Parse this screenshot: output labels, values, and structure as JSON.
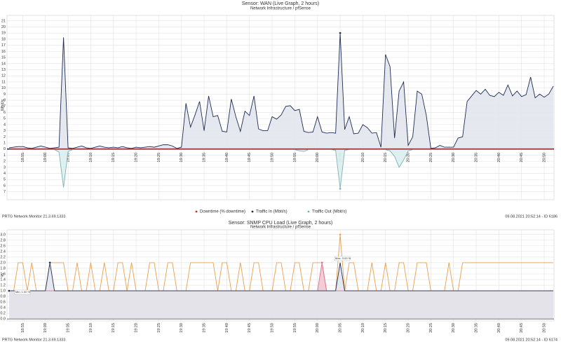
{
  "chart_data": [
    {
      "type": "line",
      "title": "Sensor: WAN (Live Graph, 2 hours)",
      "subtitle": "Network Infrastructure / pfSense",
      "y_label": "Mbit/s",
      "footer_left": "PRTG Network Monitor 21.3.69.1333",
      "footer_right": "09.08.2021 20:52:14 - ID 6186",
      "grid": true,
      "legend": "bottom",
      "x": [
        "18:52",
        "18:53",
        "18:54",
        "18:55",
        "18:56",
        "18:57",
        "18:58",
        "18:59",
        "19:00",
        "19:01",
        "19:02",
        "19:03",
        "19:04",
        "19:05",
        "19:06",
        "19:07",
        "19:08",
        "19:09",
        "19:10",
        "19:11",
        "19:12",
        "19:13",
        "19:14",
        "19:15",
        "19:16",
        "19:17",
        "19:18",
        "19:19",
        "19:20",
        "19:21",
        "19:22",
        "19:23",
        "19:24",
        "19:25",
        "19:26",
        "19:27",
        "19:28",
        "19:29",
        "19:30",
        "19:31",
        "19:32",
        "19:33",
        "19:34",
        "19:35",
        "19:36",
        "19:37",
        "19:38",
        "19:39",
        "19:40",
        "19:41",
        "19:42",
        "19:43",
        "19:44",
        "19:45",
        "19:46",
        "19:47",
        "19:48",
        "19:49",
        "19:50",
        "19:51",
        "19:52",
        "19:53",
        "19:54",
        "19:55",
        "19:56",
        "19:57",
        "19:58",
        "19:59",
        "20:00",
        "20:01",
        "20:02",
        "20:03",
        "20:04",
        "20:05",
        "20:06",
        "20:07",
        "20:08",
        "20:09",
        "20:10",
        "20:11",
        "20:12",
        "20:13",
        "20:14",
        "20:15",
        "20:16",
        "20:17",
        "20:18",
        "20:19",
        "20:20",
        "20:21",
        "20:22",
        "20:23",
        "20:24",
        "20:25",
        "20:26",
        "20:27",
        "20:28",
        "20:29",
        "20:30",
        "20:31",
        "20:32",
        "20:33",
        "20:34",
        "20:35",
        "20:36",
        "20:37",
        "20:38",
        "20:39",
        "20:40",
        "20:41",
        "20:42",
        "20:43",
        "20:44",
        "20:45",
        "20:46",
        "20:47",
        "20:48",
        "20:49",
        "20:50",
        "20:51",
        "20:52"
      ],
      "xlim": [
        "18:52",
        "20:52"
      ],
      "xticks": [
        "18:55",
        "19:00",
        "19:05",
        "19:10",
        "19:15",
        "19:20",
        "19:25",
        "19:30",
        "19:35",
        "19:40",
        "19:45",
        "19:50",
        "19:55",
        "20:00",
        "20:05",
        "20:10",
        "20:15",
        "20:20",
        "20:25",
        "20:30",
        "20:35",
        "20:40",
        "20:45",
        "20:50"
      ],
      "ylim": [
        -8.3,
        21.9
      ],
      "yticks": [
        21,
        20,
        19,
        18,
        17,
        16,
        15,
        14,
        13,
        12,
        11,
        10,
        9,
        8,
        7,
        6,
        5,
        4,
        3,
        2,
        1,
        0,
        {
          "value": -1,
          "label": "1"
        },
        {
          "value": -2,
          "label": "2"
        },
        {
          "value": -3,
          "label": "3"
        },
        {
          "value": -4,
          "label": "4"
        },
        {
          "value": -5,
          "label": "5"
        },
        {
          "value": -6,
          "label": "6"
        },
        {
          "value": -7,
          "label": "7"
        }
      ],
      "series": [
        {
          "name": "Downtime (% downtime)",
          "color": "#c0392b",
          "values": [
            0,
            0,
            0,
            0,
            0,
            0,
            0,
            0,
            0,
            0,
            0,
            0,
            0,
            0,
            0,
            0,
            0,
            0,
            0,
            0,
            0,
            0,
            0,
            0,
            0,
            0,
            0,
            0,
            0,
            0,
            0,
            0,
            0,
            0,
            0,
            0,
            0,
            0,
            0,
            0,
            0,
            0,
            0,
            0,
            0,
            0,
            0,
            0,
            0,
            0,
            0,
            0,
            0,
            0,
            0,
            0,
            0,
            0,
            0,
            0,
            0,
            0,
            0,
            0,
            0,
            0,
            0,
            0,
            0,
            0,
            0,
            0,
            0,
            0,
            0,
            0,
            0,
            0,
            0,
            0,
            0,
            0,
            0,
            0,
            0,
            0,
            0,
            0,
            0,
            0,
            0,
            0,
            0,
            0,
            0,
            0,
            0,
            0,
            0,
            0,
            0,
            0,
            0,
            0,
            0,
            0,
            0,
            0,
            0,
            0,
            0,
            0,
            0,
            0,
            0,
            0,
            0,
            0,
            0,
            0,
            0
          ]
        },
        {
          "name": "Traffic In (Mbit/s)",
          "color": "#1e2c55",
          "fill": "#e3e6ee",
          "max_marker": true,
          "values": [
            0.2,
            0.3,
            0.4,
            0.4,
            0.2,
            0.1,
            0.3,
            0.5,
            0.3,
            0.1,
            0.2,
            0.3,
            18.3,
            0.2,
            0.1,
            0.3,
            0.5,
            0.2,
            0.1,
            0.3,
            0.5,
            0.3,
            0.2,
            0.3,
            0.2,
            0.4,
            0.2,
            0.1,
            0.3,
            0.2,
            0.3,
            0.4,
            0.3,
            0.5,
            0.7,
            0.7,
            0.5,
            0.1,
            0.3,
            7.5,
            3.6,
            5.6,
            7.8,
            3.0,
            8.7,
            5.3,
            5.5,
            2.9,
            2.8,
            8.2,
            5.3,
            2.9,
            6.2,
            5.5,
            8.7,
            3.3,
            3.0,
            3.0,
            5.3,
            4.9,
            5.6,
            7.0,
            7.1,
            6.3,
            6.5,
            2.9,
            2.7,
            2.8,
            5.3,
            2.8,
            2.6,
            2.7,
            2.6,
            19.0,
            3.2,
            5.3,
            2.5,
            2.6,
            4.0,
            3.5,
            2.6,
            2.7,
            0.3,
            15.5,
            13.5,
            1.8,
            9.5,
            11.0,
            0.6,
            2.0,
            9.5,
            9.0,
            5.5,
            0.1,
            0.2,
            0.6,
            0.3,
            0.3,
            0.3,
            1.8,
            2.0,
            7.8,
            8.7,
            9.6,
            9.0,
            9.8,
            8.8,
            8.6,
            9.3,
            8.8,
            10.5,
            8.7,
            9.5,
            8.6,
            8.9,
            11.8,
            8.4,
            9.0,
            8.5,
            9.0,
            10.3
          ]
        },
        {
          "name": "Traffic Out (Mbit/s)",
          "color": "#7fb3b5",
          "fill": "#dceeee",
          "min_marker": true,
          "values": [
            -0.1,
            -0.1,
            -0.1,
            -0.1,
            -0.1,
            -0.1,
            -0.1,
            -0.1,
            -0.1,
            -0.1,
            -0.1,
            -0.5,
            -6.3,
            -0.4,
            -0.1,
            -0.1,
            -0.1,
            -0.1,
            -0.1,
            -0.1,
            -0.1,
            -0.1,
            -0.1,
            -0.1,
            -0.1,
            -0.1,
            -0.1,
            -0.1,
            -0.1,
            -0.1,
            -0.1,
            -0.1,
            -0.1,
            -0.1,
            -0.1,
            -0.1,
            -0.1,
            -0.1,
            -0.1,
            -0.1,
            -0.1,
            -0.1,
            -0.1,
            -0.1,
            -0.1,
            -0.1,
            -0.1,
            -0.1,
            -0.1,
            -0.1,
            -0.1,
            -0.1,
            -0.1,
            -0.1,
            -0.1,
            -0.1,
            -0.1,
            -0.1,
            -0.1,
            -0.1,
            -0.1,
            -0.1,
            -0.1,
            -0.1,
            -0.3,
            -0.4,
            -0.1,
            -0.1,
            -0.1,
            -0.1,
            -0.1,
            -0.1,
            -0.2,
            -6.5,
            -0.2,
            -0.1,
            -0.1,
            -0.1,
            -0.1,
            -0.1,
            -0.1,
            -0.1,
            -0.1,
            -0.1,
            -0.3,
            -1.2,
            -3.0,
            -1.8,
            -0.3,
            -0.1,
            -0.1,
            -0.1,
            -0.1,
            -0.1,
            -0.1,
            -0.1,
            -0.1,
            -0.1,
            -0.1,
            -0.1,
            -0.1,
            -0.1,
            -0.1,
            -0.1,
            -0.1,
            -0.1,
            -0.1,
            -0.1,
            -0.1,
            -0.1,
            -0.1,
            -0.1,
            -0.1,
            -0.1,
            -0.1,
            -0.1,
            -0.1,
            -0.1,
            -0.1,
            -0.1,
            -0.1
          ]
        }
      ]
    },
    {
      "type": "line",
      "title": "Sensor: SNMP CPU Load (Live Graph, 2 hours)",
      "subtitle": "Network Infrastructure / pfSense",
      "y_label": "%",
      "footer_left": "PRTG Network Monitor 21.3.69.1333",
      "footer_right": "09.08.2021 20:52:14 - ID 6174",
      "annotations": [
        "Max: 3.00 %",
        "Min: 1.00 %"
      ],
      "grid": true,
      "x": [
        "18:52",
        "18:53",
        "18:54",
        "18:55",
        "18:56",
        "18:57",
        "18:58",
        "18:59",
        "19:00",
        "19:01",
        "19:02",
        "19:03",
        "19:04",
        "19:05",
        "19:06",
        "19:07",
        "19:08",
        "19:09",
        "19:10",
        "19:11",
        "19:12",
        "19:13",
        "19:14",
        "19:15",
        "19:16",
        "19:17",
        "19:18",
        "19:19",
        "19:20",
        "19:21",
        "19:22",
        "19:23",
        "19:24",
        "19:25",
        "19:26",
        "19:27",
        "19:28",
        "19:29",
        "19:30",
        "19:31",
        "19:32",
        "19:33",
        "19:34",
        "19:35",
        "19:36",
        "19:37",
        "19:38",
        "19:39",
        "19:40",
        "19:41",
        "19:42",
        "19:43",
        "19:44",
        "19:45",
        "19:46",
        "19:47",
        "19:48",
        "19:49",
        "19:50",
        "19:51",
        "19:52",
        "19:53",
        "19:54",
        "19:55",
        "19:56",
        "19:57",
        "19:58",
        "19:59",
        "20:00",
        "20:01",
        "20:02",
        "20:03",
        "20:04",
        "20:05",
        "20:06",
        "20:07",
        "20:08",
        "20:09",
        "20:10",
        "20:11",
        "20:12",
        "20:13",
        "20:14",
        "20:15",
        "20:16",
        "20:17",
        "20:18",
        "20:19",
        "20:20",
        "20:21",
        "20:22",
        "20:23",
        "20:24",
        "20:25",
        "20:26",
        "20:27",
        "20:28",
        "20:29",
        "20:30",
        "20:31",
        "20:32",
        "20:33",
        "20:34",
        "20:35",
        "20:36",
        "20:37",
        "20:38",
        "20:39",
        "20:40",
        "20:41",
        "20:42",
        "20:43",
        "20:44",
        "20:45",
        "20:46",
        "20:47",
        "20:48",
        "20:49",
        "20:50",
        "20:51",
        "20:52"
      ],
      "xlim": [
        "18:52",
        "20:52"
      ],
      "xticks": [
        "18:55",
        "19:00",
        "19:05",
        "19:10",
        "19:15",
        "19:20",
        "19:25",
        "19:30",
        "19:35",
        "19:40",
        "19:45",
        "19:50",
        "19:55",
        "20:00",
        "20:05",
        "20:10",
        "20:15",
        "20:20",
        "20:25",
        "20:30",
        "20:35",
        "20:40",
        "20:45",
        "20:50"
      ],
      "ylim": [
        -0.07,
        3.17
      ],
      "yticks": [
        {
          "value": 3,
          "label": "3.0"
        },
        2.8,
        2.6,
        2.4,
        2.2,
        {
          "value": 2,
          "label": "2.0"
        },
        1.8,
        1.6,
        1.4,
        1.2,
        {
          "value": 1,
          "label": "1.0"
        },
        0.8,
        0.6,
        0.4,
        0.2,
        {
          "value": 0,
          "label": "0.0"
        }
      ],
      "series": [
        {
          "color": "#e8a04c",
          "max_marker": true,
          "values": [
            1,
            1,
            2,
            2,
            1,
            2,
            1,
            1,
            1,
            2,
            2,
            2,
            2,
            1,
            1,
            2,
            1,
            1,
            2,
            1,
            1,
            2,
            1,
            1,
            2,
            2,
            1,
            2,
            1,
            1,
            1,
            2,
            2,
            1,
            1,
            2,
            2,
            1,
            1,
            1,
            2,
            2,
            2,
            2,
            2,
            2,
            1,
            2,
            2,
            1,
            1,
            2,
            1,
            1,
            2,
            2,
            1,
            1,
            1,
            2,
            2,
            1,
            1,
            2,
            2,
            1,
            1,
            2,
            2,
            2,
            1,
            1,
            1,
            3,
            1,
            2,
            2,
            1,
            1,
            1,
            2,
            1,
            1,
            2,
            1,
            1,
            2,
            2,
            1,
            1,
            2,
            2,
            2,
            1,
            1,
            1,
            1,
            2,
            1,
            1,
            2,
            2,
            2,
            2,
            2,
            2,
            2,
            2,
            2,
            2,
            2,
            2,
            2,
            2,
            2,
            2,
            2,
            2,
            2,
            2,
            2
          ]
        },
        {
          "color": "#d9708f",
          "fill": "#f1c6d3",
          "max_marker": true,
          "values": [
            1,
            1,
            1,
            1,
            1,
            1,
            1,
            1,
            1,
            1,
            1,
            1,
            1,
            1,
            1,
            1,
            1,
            1,
            1,
            1,
            1,
            1,
            1,
            1,
            1,
            1,
            1,
            1,
            1,
            1,
            1,
            1,
            1,
            1,
            1,
            1,
            1,
            1,
            1,
            1,
            1,
            1,
            1,
            1,
            1,
            1,
            1,
            1,
            1,
            1,
            1,
            1,
            1,
            1,
            1,
            1,
            1,
            1,
            1,
            1,
            1,
            1,
            1,
            1,
            1,
            1,
            1,
            1,
            1,
            2,
            1,
            1,
            1,
            1,
            1,
            1,
            1,
            1,
            1,
            1,
            1,
            1,
            1,
            1,
            1,
            1,
            1,
            1,
            1,
            1,
            1,
            1,
            1,
            1,
            1,
            1,
            1,
            1,
            1,
            1,
            1,
            1,
            1,
            1,
            1,
            1,
            1,
            1,
            1,
            1,
            1,
            1,
            1,
            1,
            1,
            1,
            1,
            1,
            1,
            1,
            1
          ]
        },
        {
          "color": "#1e2c55",
          "fill": "#e2e5ec",
          "max_marker": true,
          "min_marker": true,
          "values": [
            1,
            1,
            1,
            1,
            1,
            1,
            1,
            1,
            1,
            2,
            1,
            1,
            1,
            1,
            1,
            1,
            1,
            1,
            1,
            1,
            1,
            1,
            1,
            1,
            1,
            1,
            1,
            1,
            1,
            1,
            1,
            1,
            1,
            1,
            1,
            1,
            1,
            1,
            1,
            1,
            1,
            1,
            1,
            1,
            1,
            1,
            1,
            1,
            1,
            1,
            1,
            1,
            1,
            1,
            1,
            1,
            1,
            1,
            1,
            1,
            1,
            1,
            1,
            1,
            1,
            1,
            1,
            1,
            1,
            1,
            1,
            1,
            1,
            2,
            1,
            1,
            1,
            1,
            1,
            1,
            1,
            1,
            1,
            1,
            1,
            1,
            1,
            1,
            1,
            1,
            1,
            1,
            1,
            1,
            1,
            1,
            1,
            1,
            1,
            1,
            1,
            1,
            1,
            1,
            1,
            1,
            1,
            1,
            1,
            1,
            1,
            1,
            1,
            1,
            1,
            1,
            1,
            1,
            1,
            1,
            1
          ]
        }
      ]
    }
  ]
}
